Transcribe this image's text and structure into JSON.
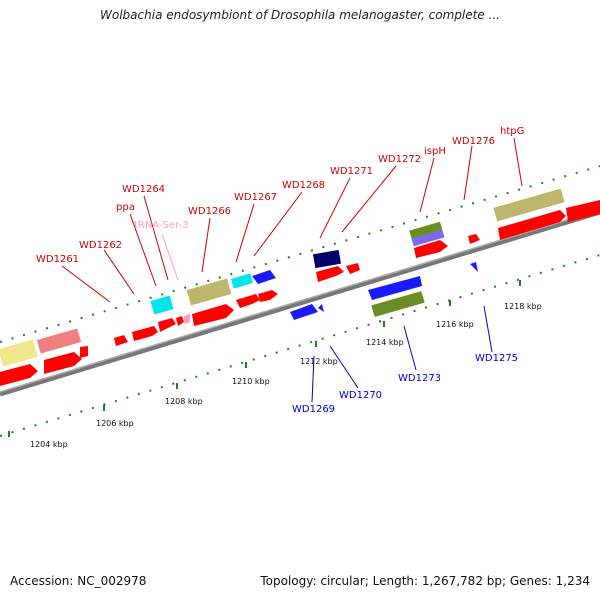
{
  "title": "Wolbachia endosymbiont of Drosophila melanogaster, complete ...",
  "footer": {
    "accession": "Accession: NC_002978",
    "stats": "Topology: circular; Length: 1,267,782 bp; Genes: 1,234"
  },
  "colors": {
    "cds": "#ff0000",
    "cds_minus": "#1a1aff",
    "trna": "#ff9ec8",
    "label_top": "#cc0000",
    "label_bottom": "#0000cc",
    "backbone": "#808080",
    "tick": "#1f7f1f"
  },
  "labels_top": [
    {
      "text": "WD1261",
      "color": "red"
    },
    {
      "text": "WD1262",
      "color": "red"
    },
    {
      "text": "ppa",
      "color": "red"
    },
    {
      "text": "WD1264",
      "color": "red"
    },
    {
      "text": "tRNA-Ser-3",
      "color": "pink"
    },
    {
      "text": "WD1266",
      "color": "red"
    },
    {
      "text": "WD1267",
      "color": "red"
    },
    {
      "text": "WD1268",
      "color": "red"
    },
    {
      "text": "WD1271",
      "color": "red"
    },
    {
      "text": "WD1272",
      "color": "red"
    },
    {
      "text": "ispH",
      "color": "red"
    },
    {
      "text": "WD1276",
      "color": "red"
    },
    {
      "text": "htpG",
      "color": "red"
    }
  ],
  "labels_bottom": [
    {
      "text": "WD1269"
    },
    {
      "text": "WD1270"
    },
    {
      "text": "WD1273"
    },
    {
      "text": "WD1275"
    }
  ],
  "scale_labels": [
    "1204 kbp",
    "1206 kbp",
    "1208 kbp",
    "1210 kbp",
    "1212 kbp",
    "1214 kbp",
    "1216 kbp",
    "1218 kbp"
  ]
}
